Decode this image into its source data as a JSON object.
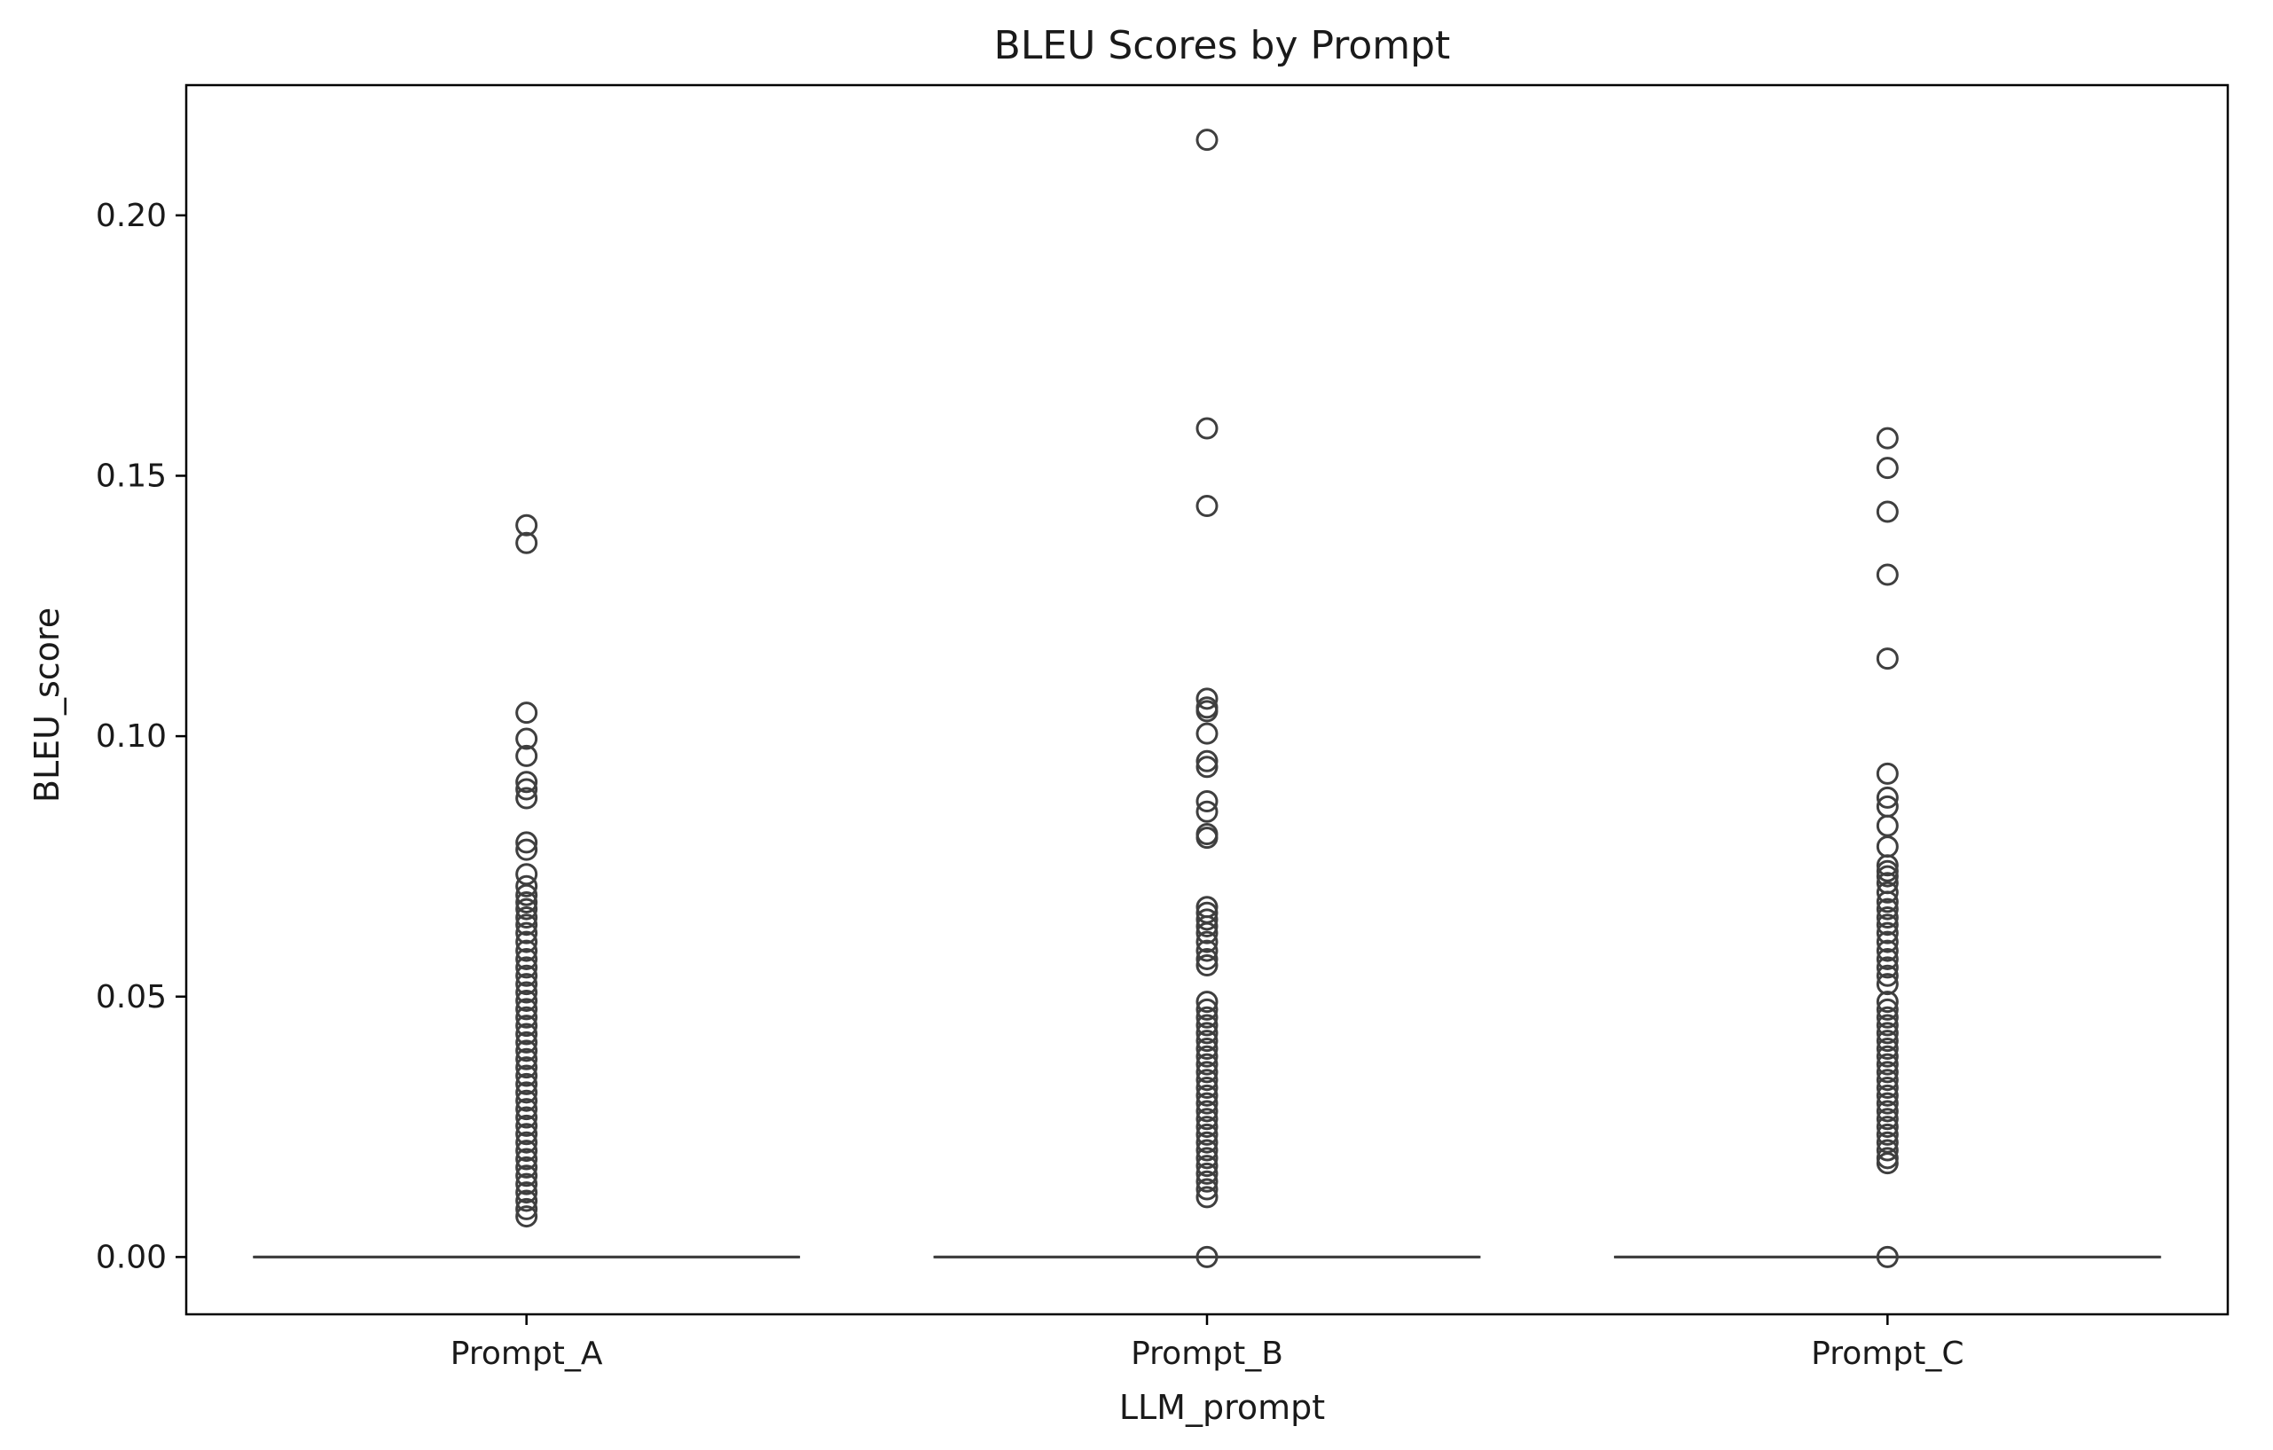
{
  "chart_data": {
    "type": "box",
    "title": "BLEU Scores by Prompt",
    "xlabel": "LLM_prompt",
    "ylabel": "BLEU_score",
    "ylim": [
      -0.011,
      0.225
    ],
    "yticks": [
      0.0,
      0.05,
      0.1,
      0.15,
      0.2
    ],
    "ytick_labels": [
      "0.00",
      "0.05",
      "0.10",
      "0.15",
      "0.20"
    ],
    "grid": false,
    "legend": "none",
    "colors": {
      "line": "#3f3f3f",
      "frame": "#000000"
    },
    "categories": [
      "Prompt_A",
      "Prompt_B",
      "Prompt_C"
    ],
    "series": [
      {
        "category": "Prompt_A",
        "q1": 0.0,
        "median": 0.0,
        "q3": 0.0,
        "whisker_low": 0.0,
        "whisker_high": 0.0,
        "outliers": [
          0.1405,
          0.1371,
          0.1045,
          0.0995,
          0.0962,
          0.0912,
          0.0898,
          0.0881,
          0.0796,
          0.0782,
          0.0735,
          0.0712,
          0.0695,
          0.0681,
          0.0668,
          0.0652,
          0.0638,
          0.0622,
          0.0605,
          0.0588,
          0.0572,
          0.0556,
          0.054,
          0.0524,
          0.0508,
          0.0492,
          0.0476,
          0.046,
          0.0444,
          0.0428,
          0.0412,
          0.0396,
          0.038,
          0.0364,
          0.0348,
          0.0332,
          0.0316,
          0.03,
          0.0284,
          0.0268,
          0.0252,
          0.0236,
          0.022,
          0.0204,
          0.0188,
          0.0172,
          0.0156,
          0.014,
          0.0124,
          0.0108,
          0.0092,
          0.0078
        ]
      },
      {
        "category": "Prompt_B",
        "q1": 0.0,
        "median": 0.0,
        "q3": 0.0,
        "whisker_low": 0.0,
        "whisker_high": 0.0,
        "outliers": [
          0.2145,
          0.1591,
          0.1442,
          0.1072,
          0.1055,
          0.1048,
          0.1005,
          0.0952,
          0.0941,
          0.0875,
          0.0855,
          0.0812,
          0.0805,
          0.0672,
          0.0661,
          0.0648,
          0.0635,
          0.0622,
          0.0605,
          0.0588,
          0.0572,
          0.056,
          0.049,
          0.0475,
          0.046,
          0.0445,
          0.043,
          0.0415,
          0.04,
          0.0385,
          0.037,
          0.0355,
          0.034,
          0.0325,
          0.031,
          0.0295,
          0.028,
          0.0265,
          0.025,
          0.0235,
          0.022,
          0.0205,
          0.019,
          0.0175,
          0.016,
          0.0145,
          0.013,
          0.0115,
          0.0
        ]
      },
      {
        "category": "Prompt_C",
        "q1": 0.0,
        "median": 0.0,
        "q3": 0.0,
        "whisker_low": 0.0,
        "whisker_high": 0.0,
        "outliers": [
          0.1572,
          0.1515,
          0.1431,
          0.131,
          0.1149,
          0.0928,
          0.0882,
          0.0865,
          0.0828,
          0.0788,
          0.0752,
          0.0741,
          0.0731,
          0.0718,
          0.07,
          0.0682,
          0.0668,
          0.0652,
          0.0638,
          0.0622,
          0.0605,
          0.0588,
          0.0572,
          0.0556,
          0.054,
          0.0524,
          0.049,
          0.0475,
          0.046,
          0.0445,
          0.043,
          0.0415,
          0.04,
          0.0385,
          0.037,
          0.0355,
          0.034,
          0.0325,
          0.031,
          0.0295,
          0.028,
          0.0265,
          0.025,
          0.0235,
          0.022,
          0.0205,
          0.019,
          0.018,
          0.0
        ]
      }
    ]
  }
}
